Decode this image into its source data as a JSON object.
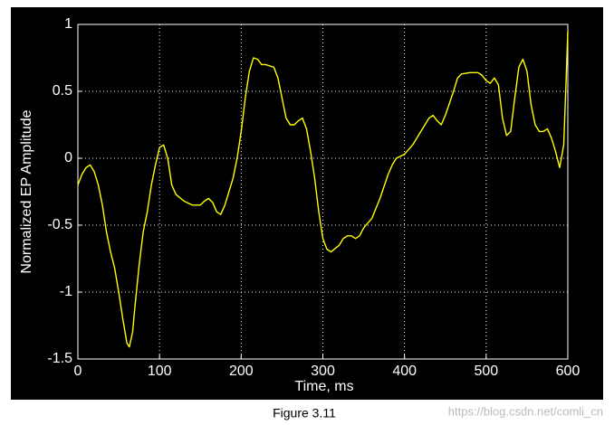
{
  "chart_data": {
    "type": "line",
    "xlabel": "Time, ms",
    "ylabel": "Normalized EP Amplitude",
    "x": [
      0,
      5,
      10,
      15,
      20,
      25,
      30,
      35,
      40,
      45,
      50,
      55,
      60,
      63,
      67,
      70,
      75,
      80,
      85,
      90,
      95,
      100,
      105,
      110,
      115,
      120,
      130,
      140,
      150,
      155,
      160,
      165,
      170,
      175,
      180,
      190,
      195,
      200,
      205,
      210,
      215,
      220,
      225,
      230,
      240,
      245,
      250,
      255,
      260,
      265,
      270,
      275,
      280,
      285,
      290,
      295,
      300,
      305,
      310,
      320,
      325,
      330,
      335,
      340,
      345,
      350,
      360,
      370,
      380,
      385,
      390,
      400,
      410,
      420,
      430,
      435,
      440,
      445,
      450,
      460,
      465,
      470,
      480,
      490,
      495,
      500,
      505,
      510,
      515,
      520,
      525,
      530,
      535,
      540,
      545,
      550,
      555,
      560,
      565,
      570,
      575,
      580,
      585,
      590,
      595,
      598,
      600
    ],
    "series": [
      {
        "color": "#ffff00",
        "values": [
          -0.2,
          -0.12,
          -0.07,
          -0.05,
          -0.1,
          -0.2,
          -0.35,
          -0.55,
          -0.7,
          -0.82,
          -1.0,
          -1.2,
          -1.38,
          -1.41,
          -1.3,
          -1.1,
          -0.8,
          -0.55,
          -0.4,
          -0.2,
          -0.05,
          0.08,
          0.1,
          0.0,
          -0.2,
          -0.27,
          -0.32,
          -0.35,
          -0.35,
          -0.32,
          -0.3,
          -0.33,
          -0.4,
          -0.42,
          -0.35,
          -0.15,
          0.0,
          0.2,
          0.45,
          0.65,
          0.75,
          0.74,
          0.7,
          0.7,
          0.68,
          0.6,
          0.45,
          0.3,
          0.25,
          0.25,
          0.28,
          0.3,
          0.22,
          0.05,
          -0.15,
          -0.4,
          -0.6,
          -0.68,
          -0.7,
          -0.65,
          -0.6,
          -0.58,
          -0.58,
          -0.6,
          -0.58,
          -0.52,
          -0.45,
          -0.3,
          -0.12,
          -0.05,
          0.0,
          0.03,
          0.1,
          0.2,
          0.3,
          0.32,
          0.28,
          0.25,
          0.32,
          0.5,
          0.6,
          0.63,
          0.64,
          0.64,
          0.62,
          0.58,
          0.56,
          0.6,
          0.55,
          0.3,
          0.17,
          0.2,
          0.45,
          0.68,
          0.74,
          0.65,
          0.4,
          0.25,
          0.2,
          0.2,
          0.22,
          0.15,
          0.05,
          -0.07,
          0.1,
          0.6,
          0.95
        ]
      }
    ],
    "xlim": [
      0,
      600
    ],
    "xticks": [
      0,
      100,
      200,
      300,
      400,
      500,
      600
    ],
    "ylim": [
      -1.5,
      1
    ],
    "yticks": [
      -1.5,
      -1,
      -0.5,
      0,
      0.5,
      1
    ],
    "grid": true
  },
  "caption": "Figure 3.11",
  "watermark": "https://blog.csdn.net/comli_cn"
}
